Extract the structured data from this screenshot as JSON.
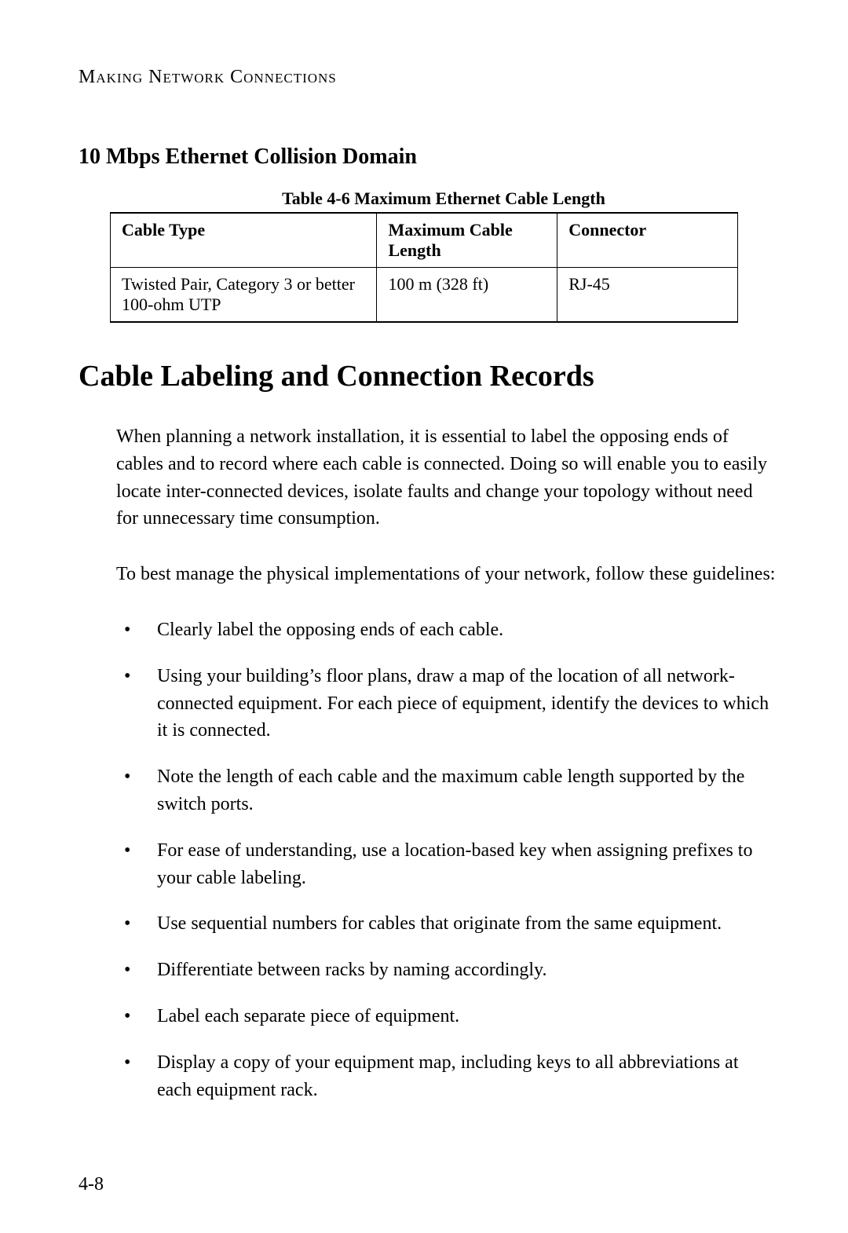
{
  "page_header": "Making Network Connections",
  "section_heading": "10 Mbps Ethernet Collision Domain",
  "table": {
    "caption": "Table 4-6  Maximum Ethernet Cable Length",
    "columns": [
      "Cable Type",
      "Maximum Cable Length",
      "Connector"
    ],
    "rows": [
      [
        "Twisted Pair, Category 3 or better 100-ohm UTP",
        "100 m (328 ft)",
        "RJ-45"
      ]
    ]
  },
  "main_heading": "Cable Labeling and Connection Records",
  "body": {
    "p1": "When planning a network installation, it is essential to label the opposing ends of cables and to record where each cable is connected. Doing so will enable you to easily locate inter-connected devices, isolate faults and change your topology without need for unnecessary time consumption.",
    "p2": "To best manage the physical implementations of your network, follow these guidelines:"
  },
  "guidelines": [
    "Clearly label the opposing ends of each cable.",
    "Using your building’s floor plans, draw a map of the location of all network-connected equipment. For each piece of equipment, identify the devices to which it is connected.",
    "Note the length of each cable and the maximum cable length supported by the switch ports.",
    "For ease of understanding, use a location-based key when assigning prefixes to your cable labeling.",
    "Use sequential numbers for cables that originate from the same equipment.",
    "Differentiate between racks by naming accordingly.",
    "Label each separate piece of equipment.",
    "Display a copy of your equipment map, including keys to all abbreviations at each equipment rack."
  ],
  "page_number": "4-8"
}
